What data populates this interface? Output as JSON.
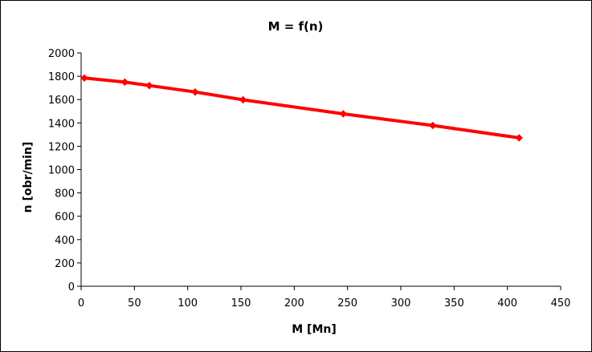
{
  "chart_data": {
    "type": "line",
    "title": "M = f(n)",
    "xlabel": "M [Mn]",
    "ylabel": "n [obr/min]",
    "xlim": [
      0,
      450
    ],
    "ylim": [
      0,
      2000
    ],
    "x_ticks": [
      0,
      50,
      100,
      150,
      200,
      250,
      300,
      350,
      400,
      450
    ],
    "y_ticks": [
      0,
      200,
      400,
      600,
      800,
      1000,
      1200,
      1400,
      1600,
      1800,
      2000
    ],
    "x_tick_labels": [
      "0",
      "50",
      "100",
      "150",
      "200",
      "250",
      "300",
      "350",
      "400",
      "450"
    ],
    "y_tick_labels": [
      "0",
      "200",
      "400",
      "600",
      "800",
      "1000",
      "1200",
      "1400",
      "1600",
      "1800",
      "2000"
    ],
    "grid": false,
    "legend": "none",
    "series": [
      {
        "color": "#ff0000",
        "marker": "diamond",
        "points": [
          {
            "x": 3,
            "y": 1785
          },
          {
            "x": 41,
            "y": 1750
          },
          {
            "x": 64,
            "y": 1720
          },
          {
            "x": 107,
            "y": 1665
          },
          {
            "x": 152,
            "y": 1598
          },
          {
            "x": 246,
            "y": 1478
          },
          {
            "x": 330,
            "y": 1378
          },
          {
            "x": 411,
            "y": 1272
          }
        ]
      }
    ]
  }
}
